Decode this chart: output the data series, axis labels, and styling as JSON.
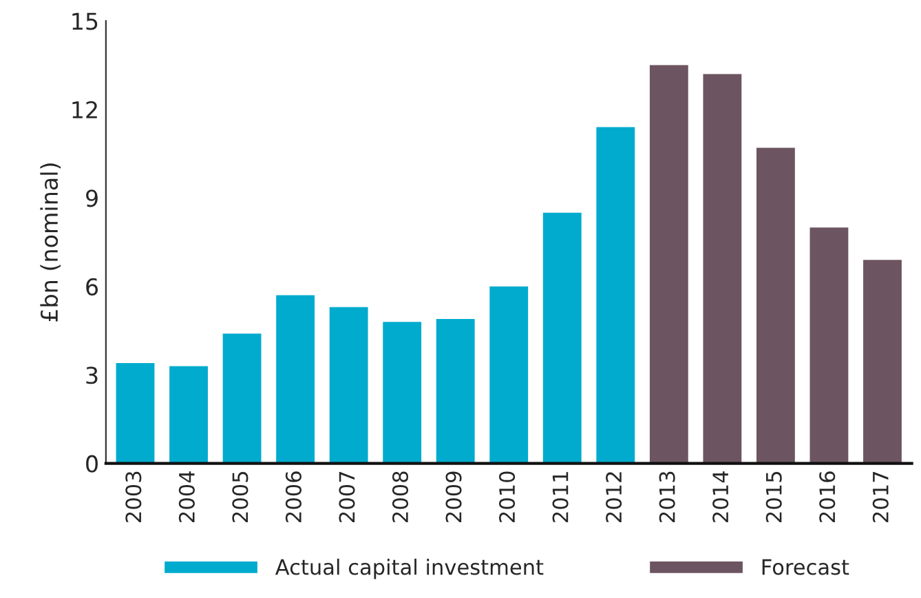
{
  "chart_data": {
    "type": "bar",
    "ylabel": "£bn (nominal)",
    "categories": [
      "2003",
      "2004",
      "2005",
      "2006",
      "2007",
      "2008",
      "2009",
      "2010",
      "2011",
      "2012",
      "2013",
      "2014",
      "2015",
      "2016",
      "2017"
    ],
    "series": [
      {
        "name": "Actual capital investment",
        "color": "#00abcd",
        "values": [
          3.4,
          3.3,
          4.4,
          5.7,
          5.3,
          4.8,
          4.9,
          6.0,
          8.5,
          11.4,
          null,
          null,
          null,
          null,
          null
        ]
      },
      {
        "name": "Forecast",
        "color": "#6c5560",
        "values": [
          null,
          null,
          null,
          null,
          null,
          null,
          null,
          null,
          null,
          null,
          13.5,
          13.2,
          10.7,
          8.0,
          6.9
        ]
      }
    ],
    "ylim": [
      0,
      15
    ],
    "yticks": [
      0,
      3,
      6,
      9,
      12,
      15
    ],
    "grid": false,
    "legend": "bottom"
  }
}
